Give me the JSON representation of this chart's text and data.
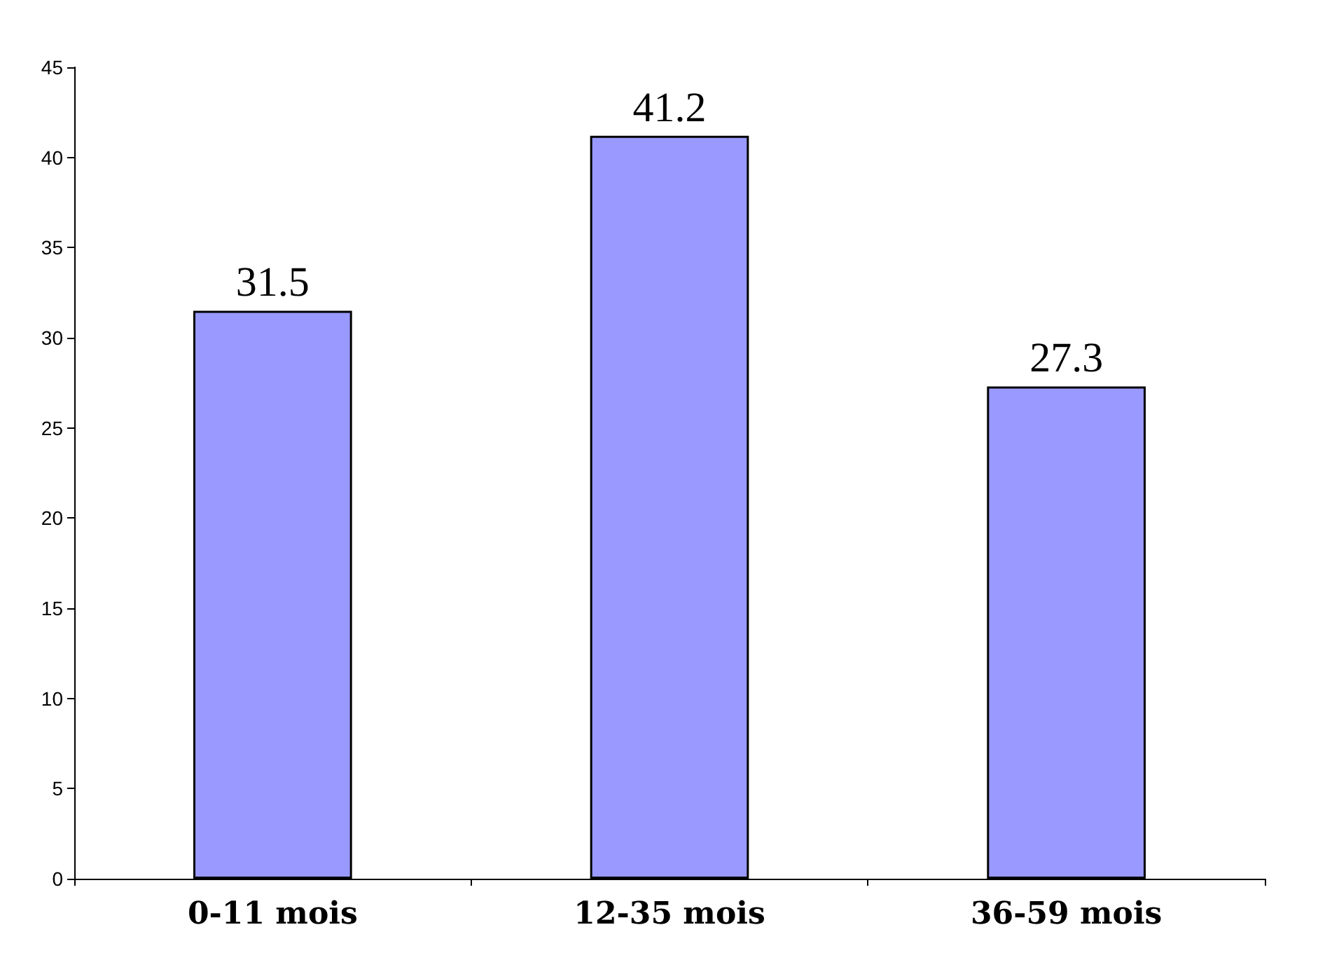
{
  "chart_data": {
    "type": "bar",
    "categories": [
      "0-11 mois",
      "12-35 mois",
      "36-59 mois"
    ],
    "values": [
      31.5,
      41.2,
      27.3
    ],
    "color": "#9999ff",
    "data_labels": true,
    "ylim": [
      0,
      45
    ],
    "yticks": [
      0,
      5,
      10,
      15,
      20,
      25,
      30,
      35,
      40,
      45
    ],
    "grid": false
  }
}
